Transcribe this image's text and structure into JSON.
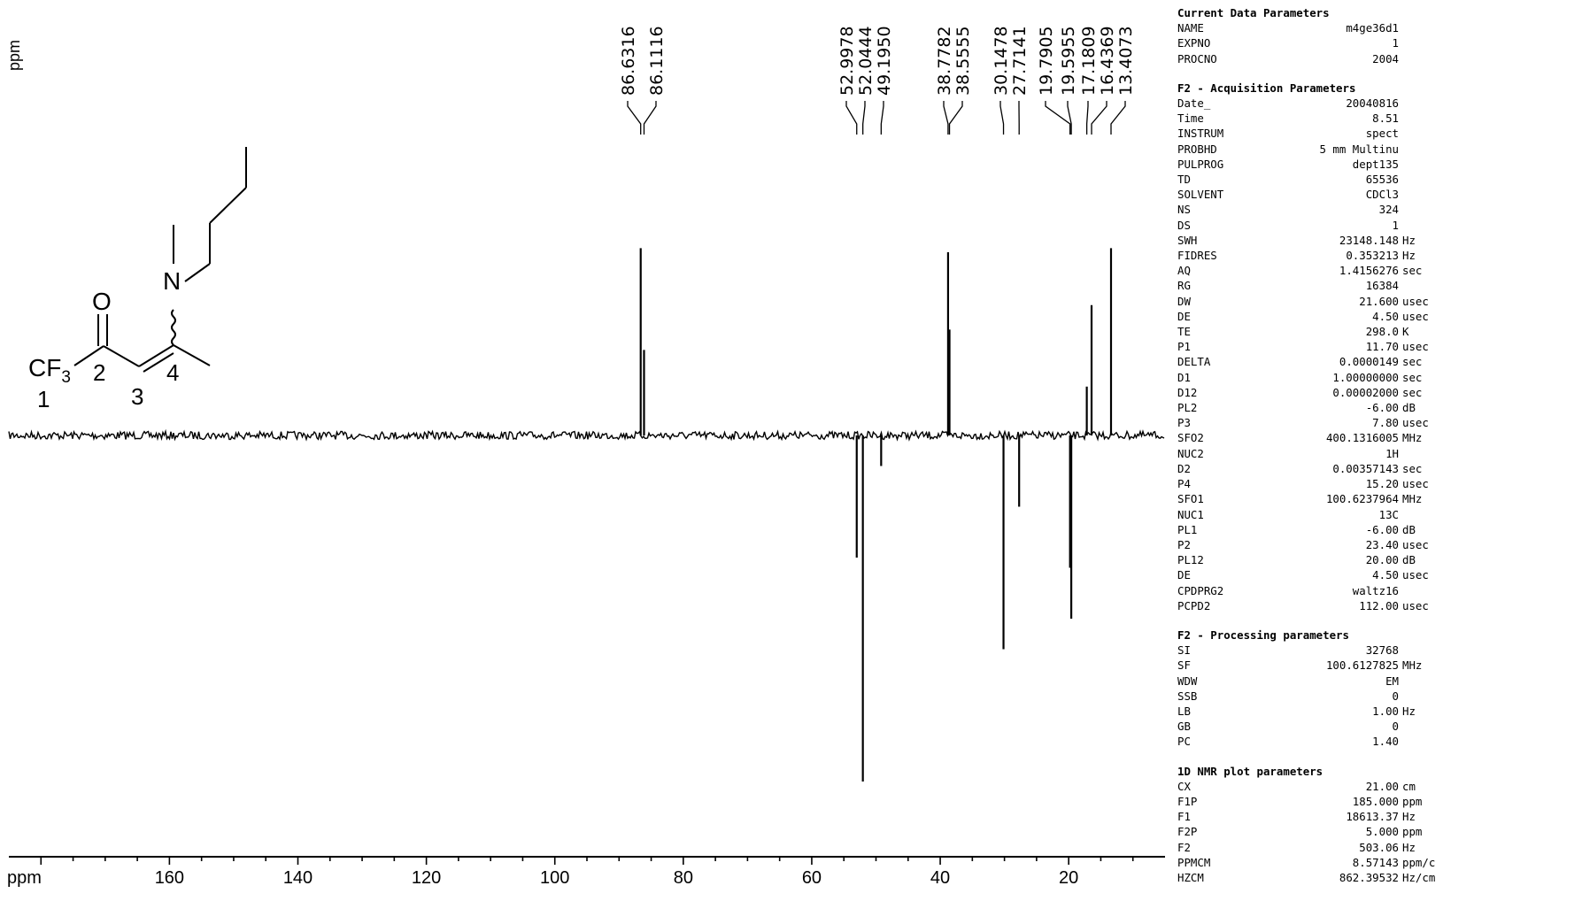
{
  "chart_data": {
    "type": "line",
    "xlabel": "ppm",
    "ylabel": "ppm",
    "xlim": [
      185,
      5
    ],
    "x_ticks": [
      160,
      140,
      120,
      100,
      80,
      60,
      40,
      20
    ],
    "peaks": [
      {
        "label": "86.6316",
        "ppm": 86.6316,
        "intensity": 0.92
      },
      {
        "label": "86.1116",
        "ppm": 86.1116,
        "intensity": 0.42
      },
      {
        "label": "52.9978",
        "ppm": 52.9978,
        "intensity": -0.6
      },
      {
        "label": "52.0444",
        "ppm": 52.0444,
        "intensity": -1.7
      },
      {
        "label": "49.1950",
        "ppm": 49.195,
        "intensity": -0.15
      },
      {
        "label": "38.7782",
        "ppm": 38.7782,
        "intensity": 0.9
      },
      {
        "label": "38.5555",
        "ppm": 38.5555,
        "intensity": 0.52
      },
      {
        "label": "30.1478",
        "ppm": 30.1478,
        "intensity": -1.05
      },
      {
        "label": "27.7141",
        "ppm": 27.7141,
        "intensity": -0.35
      },
      {
        "label": "19.7905",
        "ppm": 19.7905,
        "intensity": -0.65
      },
      {
        "label": "19.5955",
        "ppm": 19.5955,
        "intensity": -0.9
      },
      {
        "label": "17.1809",
        "ppm": 17.1809,
        "intensity": 0.24
      },
      {
        "label": "16.4369",
        "ppm": 16.4369,
        "intensity": 0.64
      },
      {
        "label": "13.4073",
        "ppm": 13.4073,
        "intensity": 0.92
      }
    ]
  },
  "structure": {
    "atoms": {
      "o": "O",
      "n": "N",
      "cf3_main": "CF",
      "cf3_sub": "3"
    },
    "numbers": {
      "n1": "1",
      "n2": "2",
      "n3": "3",
      "n4": "4"
    }
  },
  "params": {
    "current": {
      "title": "Current Data Parameters",
      "rows": [
        {
          "k": "NAME",
          "v": "m4ge36d1",
          "u": ""
        },
        {
          "k": "EXPNO",
          "v": "1",
          "u": ""
        },
        {
          "k": "PROCNO",
          "v": "2004",
          "u": ""
        }
      ]
    },
    "acq": {
      "title": "F2 - Acquisition Parameters",
      "rows": [
        {
          "k": "Date_",
          "v": "20040816",
          "u": ""
        },
        {
          "k": "Time",
          "v": "8.51",
          "u": ""
        },
        {
          "k": "INSTRUM",
          "v": "spect",
          "u": ""
        },
        {
          "k": "PROBHD",
          "v": "5 mm Multinu",
          "u": ""
        },
        {
          "k": "PULPROG",
          "v": "dept135",
          "u": ""
        },
        {
          "k": "TD",
          "v": "65536",
          "u": ""
        },
        {
          "k": "SOLVENT",
          "v": "CDCl3",
          "u": ""
        },
        {
          "k": "NS",
          "v": "324",
          "u": ""
        },
        {
          "k": "DS",
          "v": "1",
          "u": ""
        },
        {
          "k": "SWH",
          "v": "23148.148",
          "u": "Hz"
        },
        {
          "k": "FIDRES",
          "v": "0.353213",
          "u": "Hz"
        },
        {
          "k": "AQ",
          "v": "1.4156276",
          "u": "sec"
        },
        {
          "k": "RG",
          "v": "16384",
          "u": ""
        },
        {
          "k": "DW",
          "v": "21.600",
          "u": "usec"
        },
        {
          "k": "DE",
          "v": "4.50",
          "u": "usec"
        },
        {
          "k": "TE",
          "v": "298.0",
          "u": "K"
        },
        {
          "k": "P1",
          "v": "11.70",
          "u": "usec"
        },
        {
          "k": "DELTA",
          "v": "0.0000149",
          "u": "sec"
        },
        {
          "k": "D1",
          "v": "1.00000000",
          "u": "sec"
        },
        {
          "k": "D12",
          "v": "0.00002000",
          "u": "sec"
        },
        {
          "k": "PL2",
          "v": "-6.00",
          "u": "dB"
        },
        {
          "k": "P3",
          "v": "7.80",
          "u": "usec"
        },
        {
          "k": "SFO2",
          "v": "400.1316005",
          "u": "MHz"
        },
        {
          "k": "NUC2",
          "v": "1H",
          "u": ""
        },
        {
          "k": "D2",
          "v": "0.00357143",
          "u": "sec"
        },
        {
          "k": "P4",
          "v": "15.20",
          "u": "usec"
        },
        {
          "k": "SFO1",
          "v": "100.6237964",
          "u": "MHz"
        },
        {
          "k": "NUC1",
          "v": "13C",
          "u": ""
        },
        {
          "k": "PL1",
          "v": "-6.00",
          "u": "dB"
        },
        {
          "k": "P2",
          "v": "23.40",
          "u": "usec"
        },
        {
          "k": "PL12",
          "v": "20.00",
          "u": "dB"
        },
        {
          "k": "DE",
          "v": "4.50",
          "u": "usec"
        },
        {
          "k": "CPDPRG2",
          "v": "waltz16",
          "u": ""
        },
        {
          "k": "PCPD2",
          "v": "112.00",
          "u": "usec"
        }
      ]
    },
    "proc": {
      "title": "F2 - Processing parameters",
      "rows": [
        {
          "k": "SI",
          "v": "32768",
          "u": ""
        },
        {
          "k": "SF",
          "v": "100.6127825",
          "u": "MHz"
        },
        {
          "k": "WDW",
          "v": "EM",
          "u": ""
        },
        {
          "k": "SSB",
          "v": "0",
          "u": ""
        },
        {
          "k": "LB",
          "v": "1.00",
          "u": "Hz"
        },
        {
          "k": "GB",
          "v": "0",
          "u": ""
        },
        {
          "k": "PC",
          "v": "1.40",
          "u": ""
        }
      ]
    },
    "plot": {
      "title": "1D NMR plot parameters",
      "rows": [
        {
          "k": "CX",
          "v": "21.00",
          "u": "cm"
        },
        {
          "k": "F1P",
          "v": "185.000",
          "u": "ppm"
        },
        {
          "k": "F1",
          "v": "18613.37",
          "u": "Hz"
        },
        {
          "k": "F2P",
          "v": "5.000",
          "u": "ppm"
        },
        {
          "k": "F2",
          "v": "503.06",
          "u": "Hz"
        },
        {
          "k": "PPMCM",
          "v": "8.57143",
          "u": "ppm/c"
        },
        {
          "k": "HZCM",
          "v": "862.39532",
          "u": "Hz/cm"
        }
      ]
    }
  }
}
